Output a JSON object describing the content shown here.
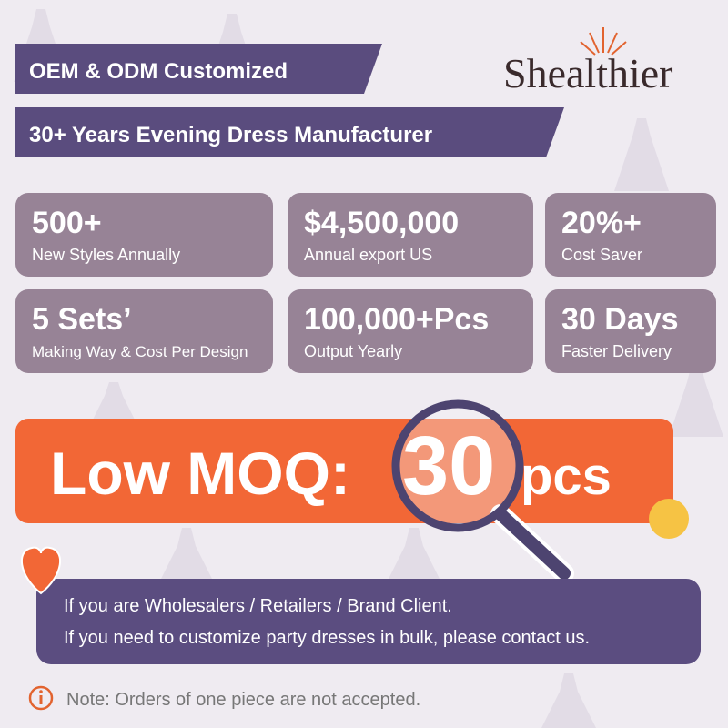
{
  "banners": [
    "OEM & ODM Customized",
    "30+ Years Evening Dress Manufacturer"
  ],
  "brand": "Shealthier",
  "stats": [
    {
      "value": "500+",
      "label": "New Styles Annually"
    },
    {
      "value": "$4,500,000",
      "label": "Annual export US"
    },
    {
      "value": "20%+",
      "label": "Cost Saver"
    },
    {
      "value": "5 Sets’",
      "label": "Making Way & Cost Per Design"
    },
    {
      "value": "100,000+Pcs",
      "label": "Output Yearly"
    },
    {
      "value": "30 Days",
      "label": "Faster Delivery"
    }
  ],
  "moq": {
    "prefix": "Low MOQ:",
    "number": "30",
    "unit": "pcs"
  },
  "message": [
    "If you are Wholesalers / Retailers / Brand Client.",
    "If you need to customize party dresses in bulk, please contact us."
  ],
  "note": "Note: Orders of one piece are not accepted."
}
